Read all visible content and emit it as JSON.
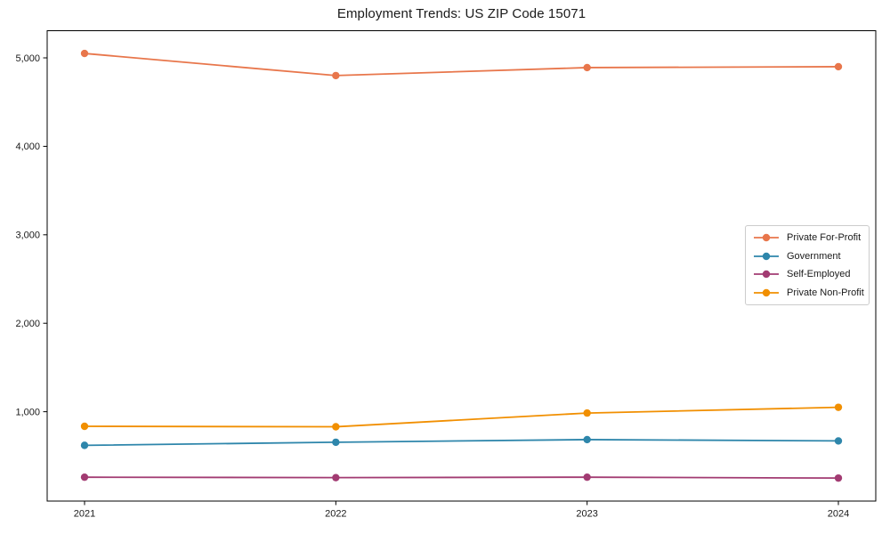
{
  "chart_data": {
    "type": "line",
    "title": "Employment Trends: US ZIP Code 15071",
    "xlabel": "",
    "ylabel": "",
    "categories": [
      "2021",
      "2022",
      "2023",
      "2024"
    ],
    "series": [
      {
        "name": "Private For-Profit",
        "color": "#e8764b",
        "values": [
          5050,
          4800,
          4890,
          4900
        ]
      },
      {
        "name": "Government",
        "color": "#2e86ab",
        "values": [
          620,
          655,
          685,
          670
        ]
      },
      {
        "name": "Self-Employed",
        "color": "#a23b72",
        "values": [
          260,
          255,
          260,
          250
        ]
      },
      {
        "name": "Private Non-Profit",
        "color": "#f18f01",
        "values": [
          835,
          830,
          985,
          1050
        ]
      }
    ],
    "yticks": [
      1000,
      2000,
      3000,
      4000,
      5000
    ],
    "ytick_labels": [
      "1,000",
      "2,000",
      "3,000",
      "4,000",
      "5,000"
    ],
    "ylim": [
      -10,
      5307
    ],
    "grid": false,
    "marker": "circle",
    "legend_position": "center-right",
    "axis_color": "#000000",
    "background_color": "#ffffff"
  }
}
